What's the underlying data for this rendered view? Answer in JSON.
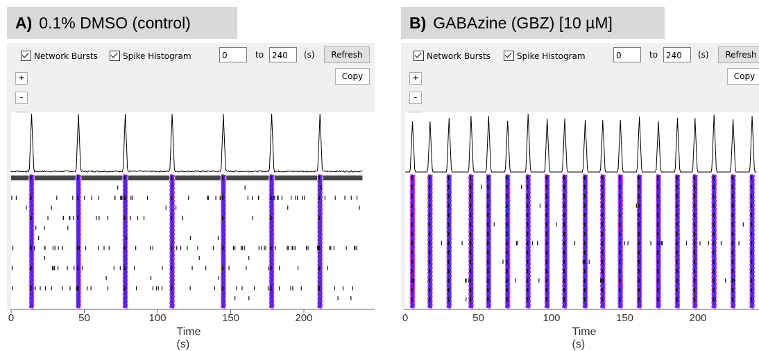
{
  "panels": [
    {
      "letter": "A)",
      "title": "0.1% DMSO (control)",
      "network_bursts_label": "Network Bursts",
      "spike_histogram_label": "Spike Histogram",
      "range_start": "0",
      "to_label": "to",
      "range_end": "240",
      "unit_label": "(s)",
      "refresh_label": "Refresh",
      "copy_label": "Copy",
      "zoom_in": "+",
      "zoom_out": "-",
      "zoom_reset": "=",
      "xticks": [
        "0",
        "50",
        "100",
        "150",
        "200"
      ],
      "xlabel": "Time (s)"
    },
    {
      "letter": "B)",
      "title": "GABAzine (GBZ) [10 µM]",
      "network_bursts_label": "Network Bursts",
      "spike_histogram_label": "Spike Histogram",
      "range_start": "0",
      "to_label": "to",
      "range_end": "240",
      "unit_label": "(s)",
      "refresh_label": "Refresh",
      "copy_label": "Copy",
      "zoom_in": "+",
      "zoom_out": "-",
      "zoom_reset": "=",
      "xticks": [
        "0",
        "50",
        "100",
        "150",
        "200"
      ],
      "xlabel": "Time (s)"
    }
  ],
  "colors": {
    "burst_marker": "#cc33ff",
    "burst_fill": "#4b2bd6",
    "histogram": "#000000",
    "spikes": "#111111"
  },
  "chart_data": [
    {
      "type": "raster",
      "xlim": [
        0,
        240
      ],
      "network_burst_times": [
        14,
        46,
        78,
        110,
        145,
        178,
        211
      ],
      "xticks": [
        0,
        50,
        100,
        150,
        200
      ]
    },
    {
      "type": "raster",
      "xlim": [
        0,
        240
      ],
      "network_burst_times": [
        5,
        17,
        30,
        45,
        57,
        70,
        84,
        97,
        109,
        123,
        135,
        147,
        160,
        173,
        186,
        198,
        211,
        224,
        237
      ],
      "xticks": [
        0,
        50,
        100,
        150,
        200
      ]
    }
  ]
}
